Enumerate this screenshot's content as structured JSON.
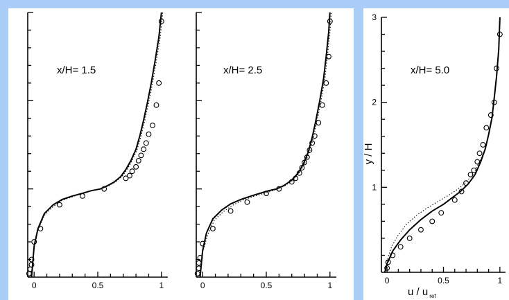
{
  "colors": {
    "background": "#a9cdf6",
    "panel": "#ffffff",
    "ink": "#000000"
  },
  "chart_data": [
    {
      "type": "line",
      "annotation": "x/H= 1.5",
      "xlim": [
        -0.05,
        1.05
      ],
      "ylim": [
        0,
        3
      ],
      "x_ticks": [
        0,
        0.5,
        1
      ],
      "x_tick_labels": [
        "0",
        "0.5",
        "1"
      ],
      "y_tick_labels": [],
      "xlabel": "",
      "ylabel": "",
      "series": [
        {
          "style": "solid",
          "x": [
            -0.02,
            0.0,
            0.03,
            0.08,
            0.15,
            0.22,
            0.3,
            0.38,
            0.45,
            0.52,
            0.58,
            0.63,
            0.68,
            0.72,
            0.76,
            0.8,
            0.83,
            0.86,
            0.89,
            0.92,
            0.95,
            0.98,
            1.0
          ],
          "y": [
            0.0,
            0.35,
            0.55,
            0.72,
            0.82,
            0.88,
            0.92,
            0.95,
            0.98,
            1.0,
            1.04,
            1.08,
            1.14,
            1.22,
            1.32,
            1.45,
            1.6,
            1.78,
            1.98,
            2.2,
            2.45,
            2.72,
            3.0
          ]
        },
        {
          "style": "dotted",
          "x": [
            -0.02,
            0.0,
            0.03,
            0.08,
            0.15,
            0.22,
            0.3,
            0.38,
            0.45,
            0.52,
            0.58,
            0.64,
            0.69,
            0.73,
            0.77,
            0.81,
            0.84,
            0.87,
            0.9,
            0.93,
            0.96,
            0.99,
            1.01
          ],
          "y": [
            0.0,
            0.33,
            0.53,
            0.7,
            0.8,
            0.87,
            0.91,
            0.95,
            0.98,
            1.0,
            1.03,
            1.08,
            1.14,
            1.22,
            1.32,
            1.45,
            1.6,
            1.78,
            1.98,
            2.2,
            2.45,
            2.72,
            3.0
          ]
        },
        {
          "style": "markers",
          "x": [
            -0.04,
            -0.03,
            -0.02,
            -0.02,
            0.0,
            0.05,
            0.2,
            0.38,
            0.55,
            0.72,
            0.75,
            0.77,
            0.8,
            0.82,
            0.84,
            0.86,
            0.88,
            0.9,
            0.93,
            0.96,
            0.98,
            1.0
          ],
          "y": [
            0.04,
            0.09,
            0.14,
            0.2,
            0.4,
            0.55,
            0.82,
            0.92,
            1.0,
            1.12,
            1.15,
            1.2,
            1.25,
            1.32,
            1.38,
            1.45,
            1.52,
            1.62,
            1.72,
            1.95,
            2.2,
            2.9
          ]
        }
      ]
    },
    {
      "type": "line",
      "annotation": "x/H= 2.5",
      "xlim": [
        -0.05,
        1.05
      ],
      "ylim": [
        0,
        3
      ],
      "x_ticks": [
        0,
        0.5,
        1
      ],
      "x_tick_labels": [
        "0",
        "0.5",
        "1"
      ],
      "y_tick_labels": [],
      "xlabel": "",
      "ylabel": "",
      "series": [
        {
          "style": "solid",
          "x": [
            -0.02,
            0.0,
            0.03,
            0.08,
            0.15,
            0.22,
            0.3,
            0.38,
            0.45,
            0.52,
            0.58,
            0.64,
            0.7,
            0.75,
            0.79,
            0.83,
            0.86,
            0.89,
            0.92,
            0.95,
            0.97,
            0.99,
            1.0
          ],
          "y": [
            0.0,
            0.3,
            0.5,
            0.66,
            0.76,
            0.83,
            0.88,
            0.92,
            0.95,
            0.98,
            1.0,
            1.04,
            1.1,
            1.18,
            1.28,
            1.42,
            1.58,
            1.78,
            2.0,
            2.25,
            2.5,
            2.78,
            3.0
          ]
        },
        {
          "style": "dotted",
          "x": [
            -0.02,
            0.0,
            0.04,
            0.09,
            0.16,
            0.23,
            0.31,
            0.39,
            0.46,
            0.53,
            0.59,
            0.65,
            0.71,
            0.76,
            0.8,
            0.84,
            0.87,
            0.9,
            0.93,
            0.96,
            0.98,
            1.0,
            1.01
          ],
          "y": [
            0.0,
            0.28,
            0.48,
            0.64,
            0.74,
            0.81,
            0.87,
            0.91,
            0.94,
            0.97,
            1.0,
            1.04,
            1.1,
            1.18,
            1.28,
            1.42,
            1.58,
            1.78,
            2.0,
            2.25,
            2.5,
            2.78,
            3.0
          ]
        },
        {
          "style": "markers",
          "x": [
            -0.04,
            -0.03,
            -0.03,
            -0.02,
            0.0,
            0.08,
            0.22,
            0.35,
            0.5,
            0.6,
            0.7,
            0.73,
            0.76,
            0.78,
            0.8,
            0.82,
            0.84,
            0.86,
            0.88,
            0.91,
            0.94,
            0.97,
            0.99,
            1.0
          ],
          "y": [
            0.04,
            0.1,
            0.16,
            0.22,
            0.38,
            0.55,
            0.75,
            0.85,
            0.95,
            1.0,
            1.08,
            1.12,
            1.18,
            1.24,
            1.3,
            1.36,
            1.44,
            1.52,
            1.6,
            1.75,
            1.95,
            2.2,
            2.5,
            2.9
          ]
        }
      ]
    },
    {
      "type": "line",
      "annotation": "x/H= 5.0",
      "xlim": [
        -0.05,
        1.05
      ],
      "ylim": [
        0,
        3
      ],
      "x_ticks": [
        0,
        0.5,
        1
      ],
      "x_tick_labels": [
        "0",
        "0.5",
        "1"
      ],
      "y_ticks": [
        1,
        2,
        3
      ],
      "y_tick_labels": [
        "1",
        "2",
        "3"
      ],
      "xlabel": "u / u",
      "xlabel_sub": "ref",
      "ylabel": "y / H",
      "series": [
        {
          "style": "solid",
          "x": [
            -0.02,
            0.0,
            0.05,
            0.12,
            0.2,
            0.3,
            0.4,
            0.5,
            0.58,
            0.65,
            0.72,
            0.78,
            0.83,
            0.87,
            0.9,
            0.93,
            0.95,
            0.97,
            0.99,
            1.0
          ],
          "y": [
            0.0,
            0.1,
            0.25,
            0.38,
            0.5,
            0.62,
            0.72,
            0.8,
            0.88,
            0.95,
            1.04,
            1.15,
            1.3,
            1.45,
            1.62,
            1.82,
            2.05,
            2.3,
            2.62,
            3.0
          ]
        },
        {
          "style": "dotted",
          "x": [
            -0.02,
            0.0,
            0.04,
            0.1,
            0.17,
            0.26,
            0.36,
            0.46,
            0.55,
            0.63,
            0.7,
            0.77,
            0.82,
            0.87,
            0.9,
            0.93,
            0.95,
            0.97,
            0.99,
            1.0
          ],
          "y": [
            0.0,
            0.14,
            0.3,
            0.44,
            0.56,
            0.67,
            0.76,
            0.84,
            0.91,
            0.98,
            1.06,
            1.17,
            1.3,
            1.45,
            1.62,
            1.82,
            2.05,
            2.3,
            2.62,
            3.0
          ]
        },
        {
          "style": "markers",
          "x": [
            0.0,
            0.01,
            0.05,
            0.12,
            0.2,
            0.3,
            0.4,
            0.48,
            0.6,
            0.66,
            0.7,
            0.74,
            0.77,
            0.8,
            0.82,
            0.85,
            0.88,
            0.92,
            0.95,
            0.97,
            1.0
          ],
          "y": [
            0.05,
            0.12,
            0.2,
            0.3,
            0.4,
            0.5,
            0.6,
            0.7,
            0.85,
            0.95,
            1.05,
            1.15,
            1.2,
            1.3,
            1.4,
            1.5,
            1.7,
            1.85,
            2.0,
            2.4,
            2.8
          ]
        }
      ]
    }
  ]
}
